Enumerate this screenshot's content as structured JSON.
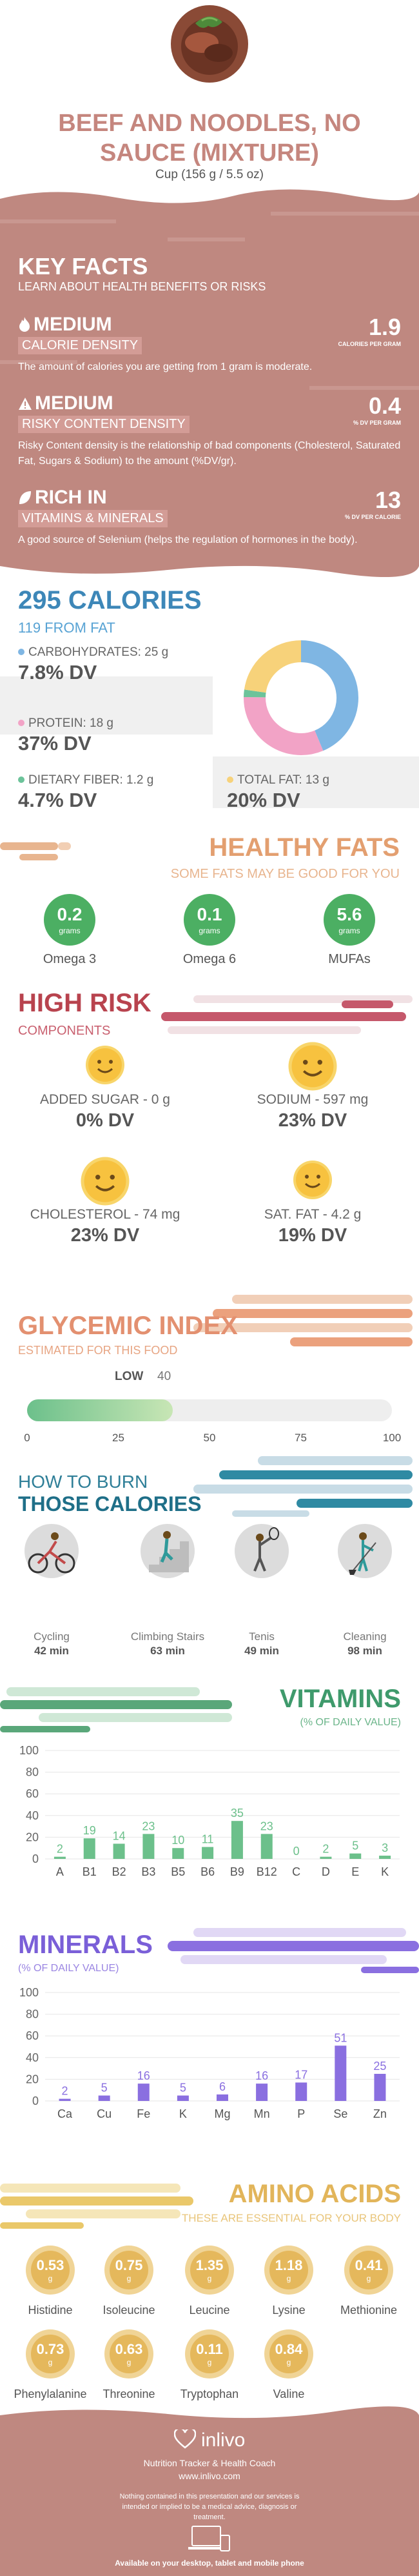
{
  "header": {
    "title": "BEEF AND NOODLES, NO SAUCE (MIXTURE)",
    "serving": "Cup (156 g / 5.5 oz)"
  },
  "key_facts": {
    "title": "KEY FACTS",
    "subtitle": "LEARN ABOUT HEALTH BENEFITS OR RISKS",
    "facts": [
      {
        "level": "MEDIUM",
        "label": "CALORIE DENSITY",
        "value": "1.9",
        "unit": "CALORIES PER GRAM",
        "desc": "The amount of calories you are getting from 1 gram is moderate."
      },
      {
        "level": "MEDIUM",
        "label": "RISKY CONTENT DENSITY",
        "value": "0.4",
        "unit": "% DV PER GRAM",
        "desc": "Risky Content density is the relationship of bad components (Cholesterol, Saturated Fat, Sugars & Sodium) to the amount (%DV/gr)."
      },
      {
        "level": "RICH  IN",
        "label": "VITAMINS & MINERALS",
        "value": "13",
        "unit": "% DV PER CALORIE",
        "desc": "A good source of Selenium (helps the regulation of hormones in the body)."
      }
    ]
  },
  "calories": {
    "title": "295 CALORIES",
    "from_fat": "119 FROM FAT",
    "nutrients": [
      {
        "label": "CARBOHYDRATES: 25 g",
        "dv": "7.8% DV",
        "color": "#7fb6e3"
      },
      {
        "label": "PROTEIN: 18 g",
        "dv": "37% DV",
        "color": "#f2a3c6"
      },
      {
        "label": "DIETARY FIBER: 1.2 g",
        "dv": "4.7% DV",
        "color": "#6cc39a"
      },
      {
        "label": "TOTAL FAT: 13 g",
        "dv": "20% DV",
        "color": "#f7d27a"
      }
    ],
    "donut": [
      {
        "name": "carbohydrates",
        "value": 25,
        "color": "#7fb6e3"
      },
      {
        "name": "protein",
        "value": 18,
        "color": "#f2a3c6"
      },
      {
        "name": "fiber",
        "value": 1.2,
        "color": "#6cc39a"
      },
      {
        "name": "fat",
        "value": 13,
        "color": "#f7d27a"
      }
    ]
  },
  "healthy_fats": {
    "title": "HEALTHY FATS",
    "subtitle": "SOME FATS MAY BE GOOD FOR YOU",
    "unit": "grams",
    "items": [
      {
        "name": "Omega 3",
        "value": "0.2"
      },
      {
        "name": "Omega 6",
        "value": "0.1"
      },
      {
        "name": "MUFAs",
        "value": "5.6"
      }
    ]
  },
  "high_risk": {
    "title": "HIGH RISK",
    "subtitle": "COMPONENTS",
    "items": [
      {
        "label": "ADDED SUGAR - 0 g",
        "dv": "0% DV"
      },
      {
        "label": "SODIUM - 597 mg",
        "dv": "23% DV"
      },
      {
        "label": "CHOLESTEROL - 74 mg",
        "dv": "23% DV"
      },
      {
        "label": "SAT. FAT - 4.2 g",
        "dv": "19% DV"
      }
    ]
  },
  "glycemic": {
    "title": "GLYCEMIC INDEX",
    "subtitle": "ESTIMATED FOR THIS FOOD",
    "level": "LOW",
    "value": 40,
    "ticks": [
      "0",
      "25",
      "50",
      "75",
      "100"
    ]
  },
  "burn": {
    "title_1": "HOW TO BURN",
    "title_2": "THOSE CALORIES",
    "items": [
      {
        "name": "Cycling",
        "time": "42 min"
      },
      {
        "name": "Climbing Stairs",
        "time": "63 min"
      },
      {
        "name": "Tenis",
        "time": "49 min"
      },
      {
        "name": "Cleaning",
        "time": "98 min"
      }
    ]
  },
  "vitamins": {
    "title": "VITAMINS",
    "subtitle": "(% OF DAILY VALUE)",
    "chart_data": {
      "type": "bar",
      "categories": [
        "A",
        "B1",
        "B2",
        "B3",
        "B5",
        "B6",
        "B9",
        "B12",
        "C",
        "D",
        "E",
        "K"
      ],
      "values": [
        2,
        19,
        14,
        23,
        10,
        11,
        35,
        23,
        0,
        2,
        5,
        3
      ],
      "yticks": [
        "0",
        "20",
        "40",
        "60",
        "80",
        "100"
      ],
      "ylim": [
        0,
        100
      ],
      "color": "#6cc08b"
    }
  },
  "minerals": {
    "title": "MINERALS",
    "subtitle": "(% OF DAILY VALUE)",
    "chart_data": {
      "type": "bar",
      "categories": [
        "Ca",
        "Cu",
        "Fe",
        "K",
        "Mg",
        "Mn",
        "P",
        "Se",
        "Zn"
      ],
      "values": [
        2,
        5,
        16,
        5,
        6,
        16,
        17,
        51,
        25
      ],
      "yticks": [
        "0",
        "20",
        "40",
        "60",
        "80",
        "100"
      ],
      "ylim": [
        0,
        100
      ],
      "color": "#8a6fe0"
    }
  },
  "amino": {
    "title": "AMINO ACIDS",
    "subtitle": "THESE ARE ESSENTIAL FOR YOUR BODY",
    "unit": "g",
    "items": [
      {
        "name": "Histidine",
        "value": "0.53"
      },
      {
        "name": "Isoleucine",
        "value": "0.75"
      },
      {
        "name": "Leucine",
        "value": "1.35"
      },
      {
        "name": "Lysine",
        "value": "1.18"
      },
      {
        "name": "Methionine",
        "value": "0.41"
      },
      {
        "name": "Phenylalanine",
        "value": "0.73"
      },
      {
        "name": "Threonine",
        "value": "0.63"
      },
      {
        "name": "Tryptophan",
        "value": "0.11"
      },
      {
        "name": "Valine",
        "value": "0.84"
      }
    ]
  },
  "footer": {
    "brand": "inlivo",
    "tagline": "Nutrition Tracker & Health Coach",
    "url": "www.inlivo.com",
    "disclaimer": "Nothing contained in this presentation and our services is intended or implied to be a medical advice, diagnosis or treatment.",
    "available": "Available on your desktop, tablet and mobile phone"
  }
}
